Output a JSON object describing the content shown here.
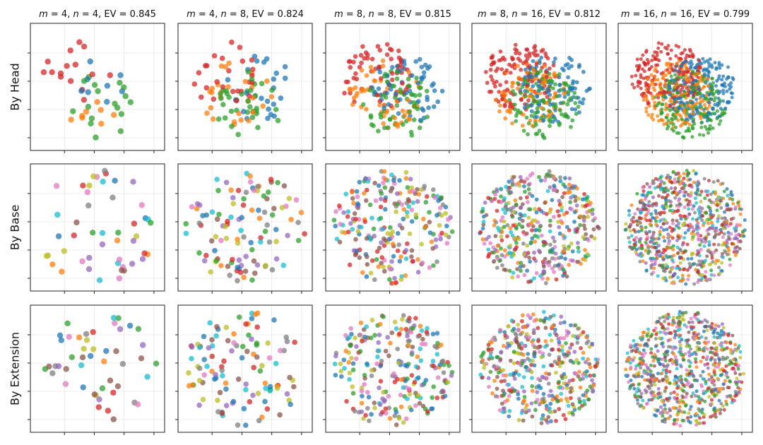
{
  "figure": {
    "rows": [
      {
        "label": "By Head",
        "groups": 4
      },
      {
        "label": "By Base",
        "groups": 10
      },
      {
        "label": "By Extension",
        "groups": 10
      }
    ],
    "columns": [
      {
        "m": 4,
        "n": 4,
        "ev": "0.845",
        "points": 48,
        "title": {
          "m": "m",
          "n": "n",
          "m_val": "= 4",
          "n_val": "= 4",
          "ev_text": "EV = 0.845"
        }
      },
      {
        "m": 4,
        "n": 8,
        "ev": "0.824",
        "points": 110,
        "title": {
          "m": "m",
          "n": "n",
          "m_val": "= 4",
          "n_val": "= 8",
          "ev_text": "EV = 0.824"
        }
      },
      {
        "m": 8,
        "n": 8,
        "ev": "0.815",
        "points": 240,
        "title": {
          "m": "m",
          "n": "n",
          "m_val": "= 8",
          "n_val": "= 8",
          "ev_text": "EV = 0.815"
        }
      },
      {
        "m": 8,
        "n": 16,
        "ev": "0.812",
        "points": 430,
        "title": {
          "m": "m",
          "n": "n",
          "m_val": "= 8",
          "n_val": "= 16",
          "ev_text": "EV = 0.812"
        }
      },
      {
        "m": 16,
        "n": 16,
        "ev": "0.799",
        "points": 760,
        "title": {
          "m": "m",
          "n": "n",
          "m_val": "= 16",
          "n_val": "= 16",
          "ev_text": "EV = 0.799"
        }
      }
    ]
  },
  "colors": {
    "palette": [
      "#d62728",
      "#1f77b4",
      "#2ca02c",
      "#ff7f0e",
      "#9467bd",
      "#8c564b",
      "#e377c2",
      "#7f7f7f",
      "#bcbd22",
      "#17becf"
    ],
    "head_palette": [
      "#d62728",
      "#1f77b4",
      "#2ca02c",
      "#ff7f0e"
    ]
  },
  "chart_data": [
    {
      "type": "scatter",
      "title": "m = 4, n = 4, EV = 0.845",
      "ylabel": "By Head",
      "points": 48,
      "groups": 4
    },
    {
      "type": "scatter",
      "title": "m = 4, n = 8, EV = 0.824",
      "points": 110,
      "groups": 4
    },
    {
      "type": "scatter",
      "title": "m = 8, n = 8, EV = 0.815",
      "points": 240,
      "groups": 4
    },
    {
      "type": "scatter",
      "title": "m = 8, n = 16, EV = 0.812",
      "points": 430,
      "groups": 4
    },
    {
      "type": "scatter",
      "title": "m = 16, n = 16, EV = 0.799",
      "points": 760,
      "groups": 4
    },
    {
      "type": "scatter",
      "ylabel": "By Base",
      "points": 48,
      "groups": 10
    },
    {
      "type": "scatter",
      "points": 110,
      "groups": 10
    },
    {
      "type": "scatter",
      "points": 240,
      "groups": 10
    },
    {
      "type": "scatter",
      "points": 430,
      "groups": 10
    },
    {
      "type": "scatter",
      "points": 760,
      "groups": 10
    },
    {
      "type": "scatter",
      "ylabel": "By Extension",
      "points": 48,
      "groups": 10
    },
    {
      "type": "scatter",
      "points": 110,
      "groups": 10
    },
    {
      "type": "scatter",
      "points": 240,
      "groups": 10
    },
    {
      "type": "scatter",
      "points": 430,
      "groups": 10
    },
    {
      "type": "scatter",
      "points": 760,
      "groups": 10
    }
  ]
}
